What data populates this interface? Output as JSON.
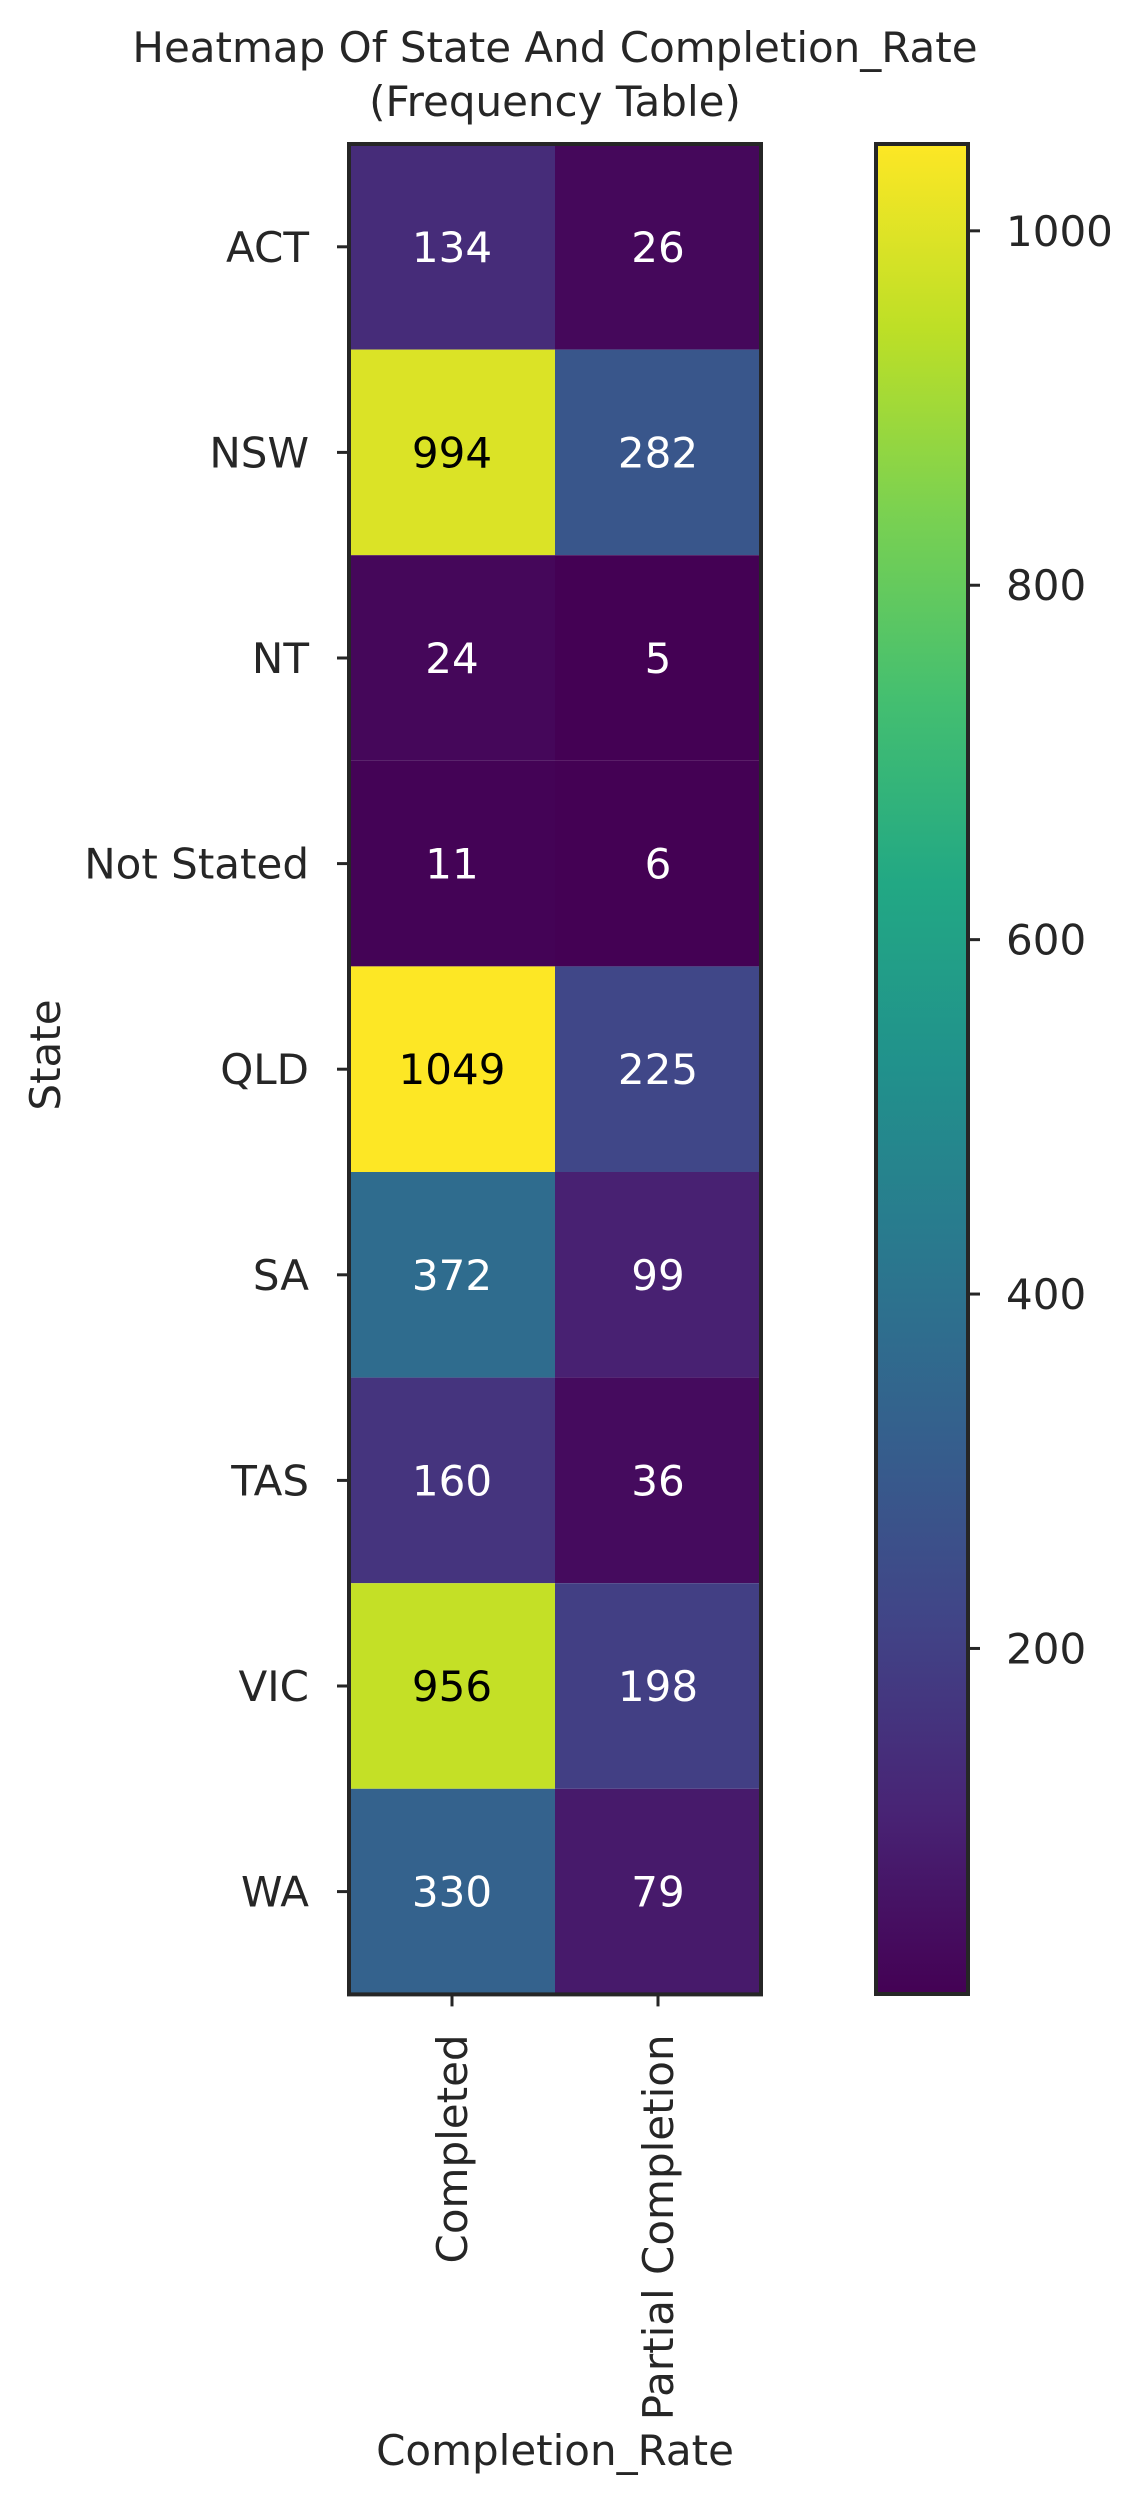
{
  "chart_data": {
    "type": "heatmap",
    "title_line1": "Heatmap Of State And Completion_Rate",
    "title_line2": "(Frequency Table)",
    "xlabel": "Completion_Rate",
    "ylabel": "State",
    "x_categories": [
      "Completed",
      "Partial Completion"
    ],
    "y_categories": [
      "ACT",
      "NSW",
      "NT",
      "Not Stated",
      "QLD",
      "SA",
      "TAS",
      "VIC",
      "WA"
    ],
    "values": [
      [
        134,
        26
      ],
      [
        994,
        282
      ],
      [
        24,
        5
      ],
      [
        11,
        6
      ],
      [
        1049,
        225
      ],
      [
        372,
        99
      ],
      [
        160,
        36
      ],
      [
        956,
        198
      ],
      [
        330,
        79
      ]
    ],
    "colormap": "viridis",
    "vmin": 5,
    "vmax": 1049,
    "colorbar_ticks": [
      200,
      400,
      600,
      800,
      1000
    ]
  }
}
